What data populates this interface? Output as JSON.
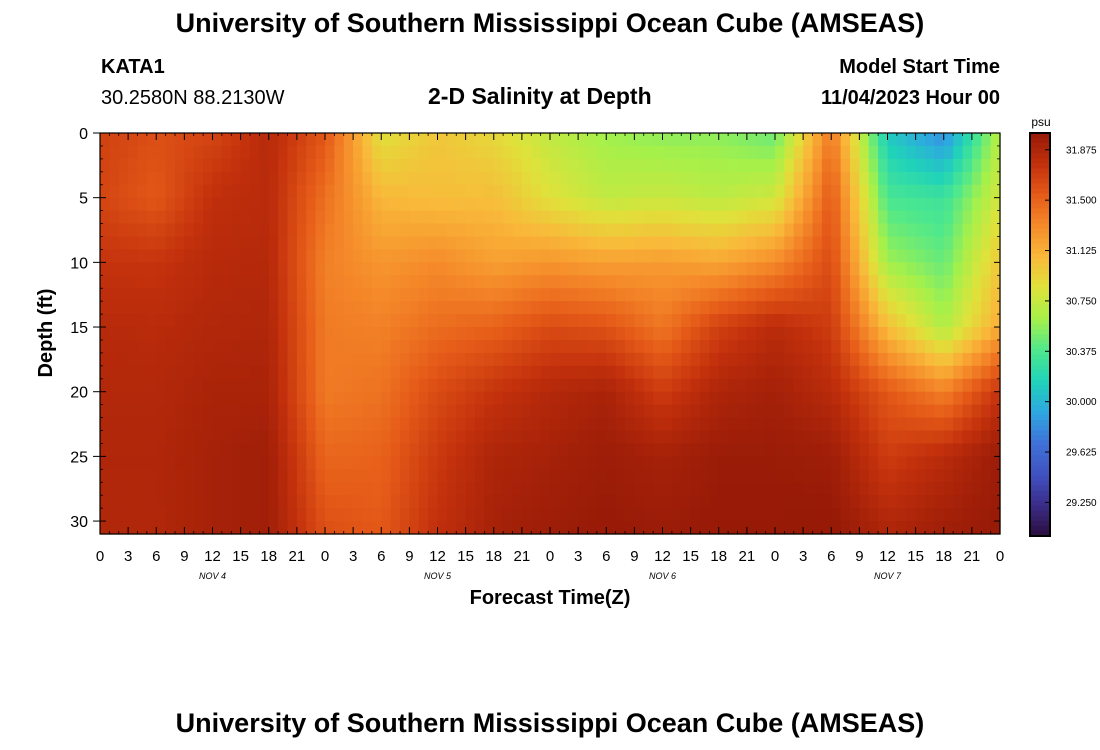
{
  "header": {
    "title_top": "University of Southern Mississippi Ocean Cube (AMSEAS)",
    "station_id": "KATA1",
    "station_coords": "30.2580N  88.2130W",
    "plot_title": "2-D Salinity at Depth",
    "model_start_label": "Model Start Time",
    "model_start_value": "11/04/2023 Hour 00",
    "title_bottom": "University of Southern Mississippi Ocean Cube (AMSEAS)"
  },
  "chart_data": {
    "type": "heatmap",
    "title": "2-D Salinity at Depth",
    "xlabel": "Forecast Time(Z)",
    "ylabel": "Depth (ft)",
    "x_tick_labels": [
      "0",
      "3",
      "6",
      "9",
      "12",
      "15",
      "18",
      "21",
      "0",
      "3",
      "6",
      "9",
      "12",
      "15",
      "18",
      "21",
      "0",
      "3",
      "6",
      "9",
      "12",
      "15",
      "18",
      "21",
      "0",
      "3",
      "6",
      "9",
      "12",
      "15",
      "18",
      "21",
      "0"
    ],
    "x_range_hours": [
      0,
      96
    ],
    "day_labels": [
      {
        "text": "NOV 4",
        "hour": 12
      },
      {
        "text": "NOV 5",
        "hour": 36
      },
      {
        "text": "NOV 6",
        "hour": 60
      },
      {
        "text": "NOV 7",
        "hour": 84
      }
    ],
    "y_ticks": [
      0,
      5,
      10,
      15,
      20,
      25,
      30
    ],
    "ylim": [
      0,
      31
    ],
    "y_inverted": true,
    "colorbar": {
      "unit": "psu",
      "range": [
        29.0,
        32.0
      ],
      "tick_labels": [
        "31.875",
        "31.500",
        "31.125",
        "30.750",
        "30.375",
        "30.000",
        "29.625",
        "29.250"
      ],
      "colormap": [
        "#2b0e3d",
        "#3b2c8a",
        "#4052c2",
        "#3f72d8",
        "#2ea8e0",
        "#20d3b8",
        "#4fe88c",
        "#a6f04a",
        "#dfe23a",
        "#f9b93a",
        "#f58a2a",
        "#e55a18",
        "#c2300c",
        "#971a07"
      ]
    },
    "time_hours": [
      0,
      6,
      12,
      18,
      24,
      30,
      36,
      42,
      48,
      54,
      60,
      66,
      72,
      78,
      84,
      90,
      96
    ],
    "depths_ft": [
      0,
      5,
      10,
      15,
      20,
      25,
      31
    ],
    "salinity_psu": [
      [
        31.68,
        31.6,
        31.65,
        31.83,
        31.56,
        30.85,
        31.0,
        30.9,
        30.72,
        30.6,
        30.55,
        30.55,
        30.45,
        31.4,
        30.1,
        29.8,
        30.7
      ],
      [
        31.65,
        31.55,
        31.78,
        31.82,
        31.43,
        31.08,
        31.05,
        31.05,
        30.85,
        30.72,
        30.75,
        30.7,
        30.78,
        31.55,
        30.35,
        30.3,
        30.8
      ],
      [
        31.75,
        31.75,
        31.83,
        31.84,
        31.35,
        31.25,
        31.3,
        31.2,
        31.25,
        31.2,
        31.22,
        31.17,
        31.3,
        31.62,
        30.6,
        30.45,
        31.0
      ],
      [
        31.83,
        31.82,
        31.86,
        31.87,
        31.38,
        31.35,
        31.45,
        31.5,
        31.62,
        31.58,
        31.4,
        31.68,
        31.82,
        31.7,
        31.05,
        30.65,
        31.15
      ],
      [
        31.85,
        31.85,
        31.9,
        31.9,
        31.38,
        31.42,
        31.62,
        31.75,
        31.85,
        31.9,
        31.7,
        31.88,
        31.93,
        31.82,
        31.55,
        31.35,
        31.75
      ],
      [
        31.87,
        31.87,
        31.92,
        31.95,
        31.48,
        31.5,
        31.72,
        31.88,
        31.92,
        31.97,
        31.92,
        31.98,
        31.98,
        31.96,
        31.7,
        31.82,
        31.98
      ],
      [
        31.86,
        31.86,
        31.92,
        31.95,
        31.6,
        31.55,
        31.78,
        31.92,
        31.97,
        32.0,
        31.98,
        32.0,
        32.0,
        32.02,
        31.88,
        31.96,
        32.0
      ]
    ]
  }
}
